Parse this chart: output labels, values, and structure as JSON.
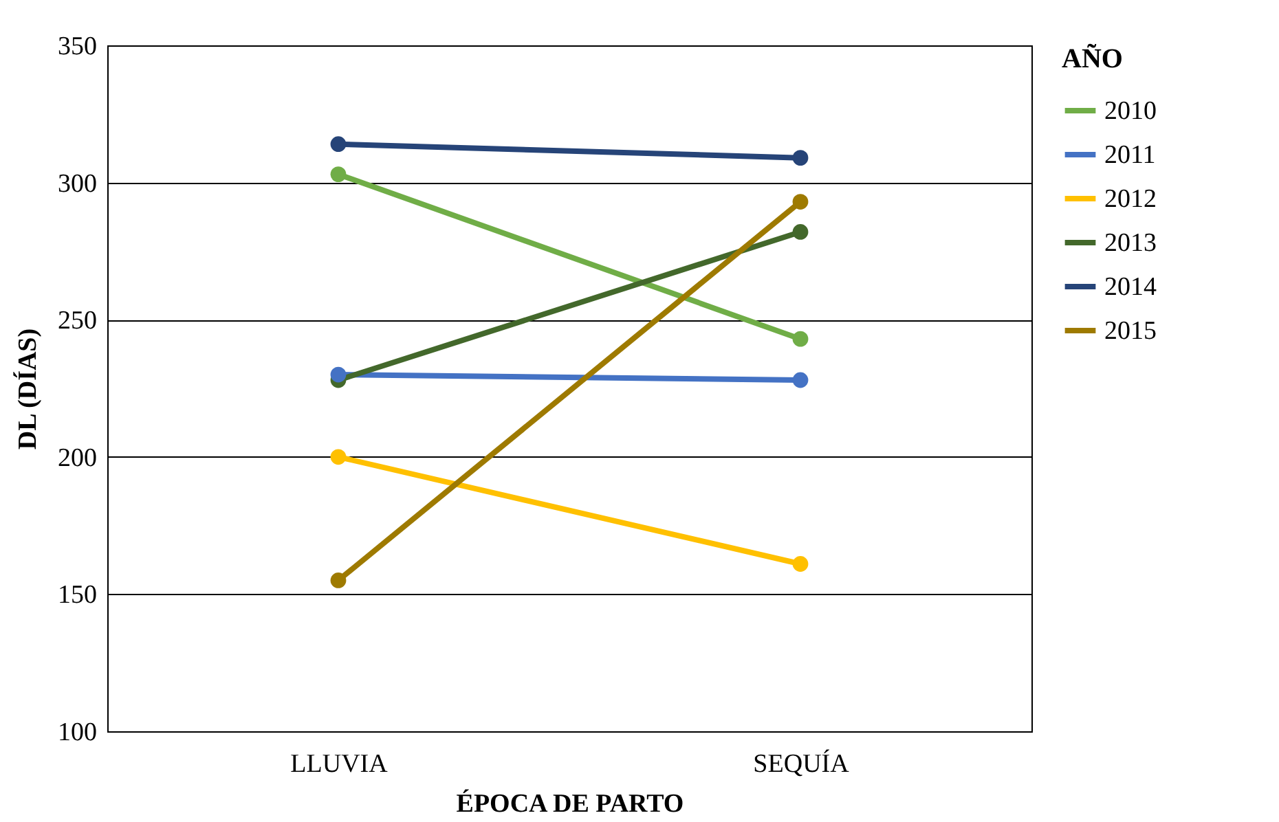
{
  "chart_data": {
    "type": "line",
    "xlabel": "ÉPOCA DE PARTO",
    "ylabel": "DL (DÍAS)",
    "legend_title": "AÑO",
    "categories": [
      "LLUVIA",
      "SEQUÍA"
    ],
    "series": [
      {
        "name": "2010",
        "color": "#70ad47",
        "values": [
          303,
          243
        ]
      },
      {
        "name": "2011",
        "color": "#4472c4",
        "values": [
          230,
          228
        ]
      },
      {
        "name": "2012",
        "color": "#ffc000",
        "values": [
          200,
          161
        ]
      },
      {
        "name": "2013",
        "color": "#43682b",
        "values": [
          228,
          282
        ]
      },
      {
        "name": "2014",
        "color": "#264478",
        "values": [
          314,
          309
        ]
      },
      {
        "name": "2015",
        "color": "#9e7a00",
        "values": [
          155,
          293
        ]
      }
    ],
    "ylim": [
      100,
      350
    ],
    "yticks": [
      100,
      150,
      200,
      250,
      300,
      350
    ],
    "grid": "y",
    "legend": "right",
    "marker": "circle",
    "line_style": "solid"
  }
}
